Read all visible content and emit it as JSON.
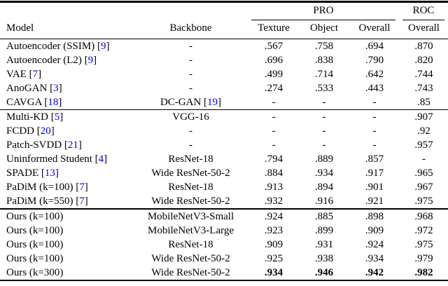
{
  "table": {
    "header": {
      "model": "Model",
      "backbone": "Backbone",
      "pro_group": "PRO",
      "roc_group": "ROC",
      "texture": "Texture",
      "object": "Object",
      "pro_overall": "Overall",
      "roc_overall": "Overall"
    },
    "citation": {
      "open": "[",
      "close": "]",
      "color": "#0000EE"
    },
    "text_color": "#000000",
    "background_color": "#ffffff",
    "sections": [
      {
        "rows": [
          {
            "model": {
              "name": "Autoencoder (SSIM)",
              "ref": "9"
            },
            "backbone": {
              "name": "-"
            },
            "texture": ".567",
            "object": ".758",
            "overall": ".694",
            "roc": ".870",
            "bold": false
          },
          {
            "model": {
              "name": "Autoencoder (L2)",
              "ref": "9"
            },
            "backbone": {
              "name": "-"
            },
            "texture": ".696",
            "object": ".838",
            "overall": ".790",
            "roc": ".820",
            "bold": false
          },
          {
            "model": {
              "name": "VAE",
              "ref": "7"
            },
            "backbone": {
              "name": "-"
            },
            "texture": ".499",
            "object": ".714",
            "overall": ".642",
            "roc": ".744",
            "bold": false
          },
          {
            "model": {
              "name": "AnoGAN",
              "ref": "3"
            },
            "backbone": {
              "name": "-"
            },
            "texture": ".274",
            "object": ".533",
            "overall": ".443",
            "roc": ".743",
            "bold": false
          },
          {
            "model": {
              "name": "CAVGA",
              "ref": "18"
            },
            "backbone": {
              "name": "DC-GAN",
              "ref": "19"
            },
            "texture": "-",
            "object": "-",
            "overall": "-",
            "roc": ".85",
            "bold": false
          }
        ]
      },
      {
        "rows": [
          {
            "model": {
              "name": "Multi-KD",
              "ref": "5"
            },
            "backbone": {
              "name": "VGG-16"
            },
            "texture": "-",
            "object": "-",
            "overall": "-",
            "roc": ".907",
            "bold": false
          },
          {
            "model": {
              "name": "FCDD",
              "ref": "20"
            },
            "backbone": {
              "name": "-"
            },
            "texture": "-",
            "object": "-",
            "overall": "-",
            "roc": ".92",
            "bold": false
          },
          {
            "model": {
              "name": "Patch-SVDD",
              "ref": "21"
            },
            "backbone": {
              "name": "-"
            },
            "texture": "-",
            "object": "-",
            "overall": "-",
            "roc": ".957",
            "bold": false
          },
          {
            "model": {
              "name": "Uninformed Student",
              "ref": "4"
            },
            "backbone": {
              "name": "ResNet-18"
            },
            "texture": ".794",
            "object": ".889",
            "overall": ".857",
            "roc": "-",
            "bold": false
          },
          {
            "model": {
              "name": "SPADE",
              "ref": "13"
            },
            "backbone": {
              "name": "Wide ResNet-50-2"
            },
            "texture": ".884",
            "object": ".934",
            "overall": ".917",
            "roc": ".965",
            "bold": false
          },
          {
            "model": {
              "name": "PaDiM (k=100)",
              "ref": "7"
            },
            "backbone": {
              "name": "ResNet-18"
            },
            "texture": ".913",
            "object": ".894",
            "overall": ".901",
            "roc": ".967",
            "bold": false
          },
          {
            "model": {
              "name": "PaDiM (k=550)",
              "ref": "7"
            },
            "backbone": {
              "name": "Wide ResNet-50-2"
            },
            "texture": ".932",
            "object": ".916",
            "overall": ".921",
            "roc": ".975",
            "bold": false
          }
        ]
      },
      {
        "rows": [
          {
            "model": {
              "name": "Ours (k=100)"
            },
            "backbone": {
              "name": "MobileNetV3-Small"
            },
            "texture": ".924",
            "object": ".885",
            "overall": ".898",
            "roc": ".968",
            "bold": false
          },
          {
            "model": {
              "name": "Ours (k=100)"
            },
            "backbone": {
              "name": "MobileNetV3-Large"
            },
            "texture": ".923",
            "object": ".899",
            "overall": ".909",
            "roc": ".972",
            "bold": false
          },
          {
            "model": {
              "name": "Ours (k=100)"
            },
            "backbone": {
              "name": "ResNet-18"
            },
            "texture": ".909",
            "object": ".931",
            "overall": ".924",
            "roc": ".975",
            "bold": false
          },
          {
            "model": {
              "name": "Ours (k=100)"
            },
            "backbone": {
              "name": "Wide ResNet-50-2"
            },
            "texture": ".925",
            "object": ".938",
            "overall": ".934",
            "roc": ".979",
            "bold": false
          },
          {
            "model": {
              "name": "Ours (k=300)"
            },
            "backbone": {
              "name": "Wide ResNet-50-2"
            },
            "texture": ".934",
            "object": ".946",
            "overall": ".942",
            "roc": ".982",
            "bold": true
          }
        ]
      }
    ]
  }
}
